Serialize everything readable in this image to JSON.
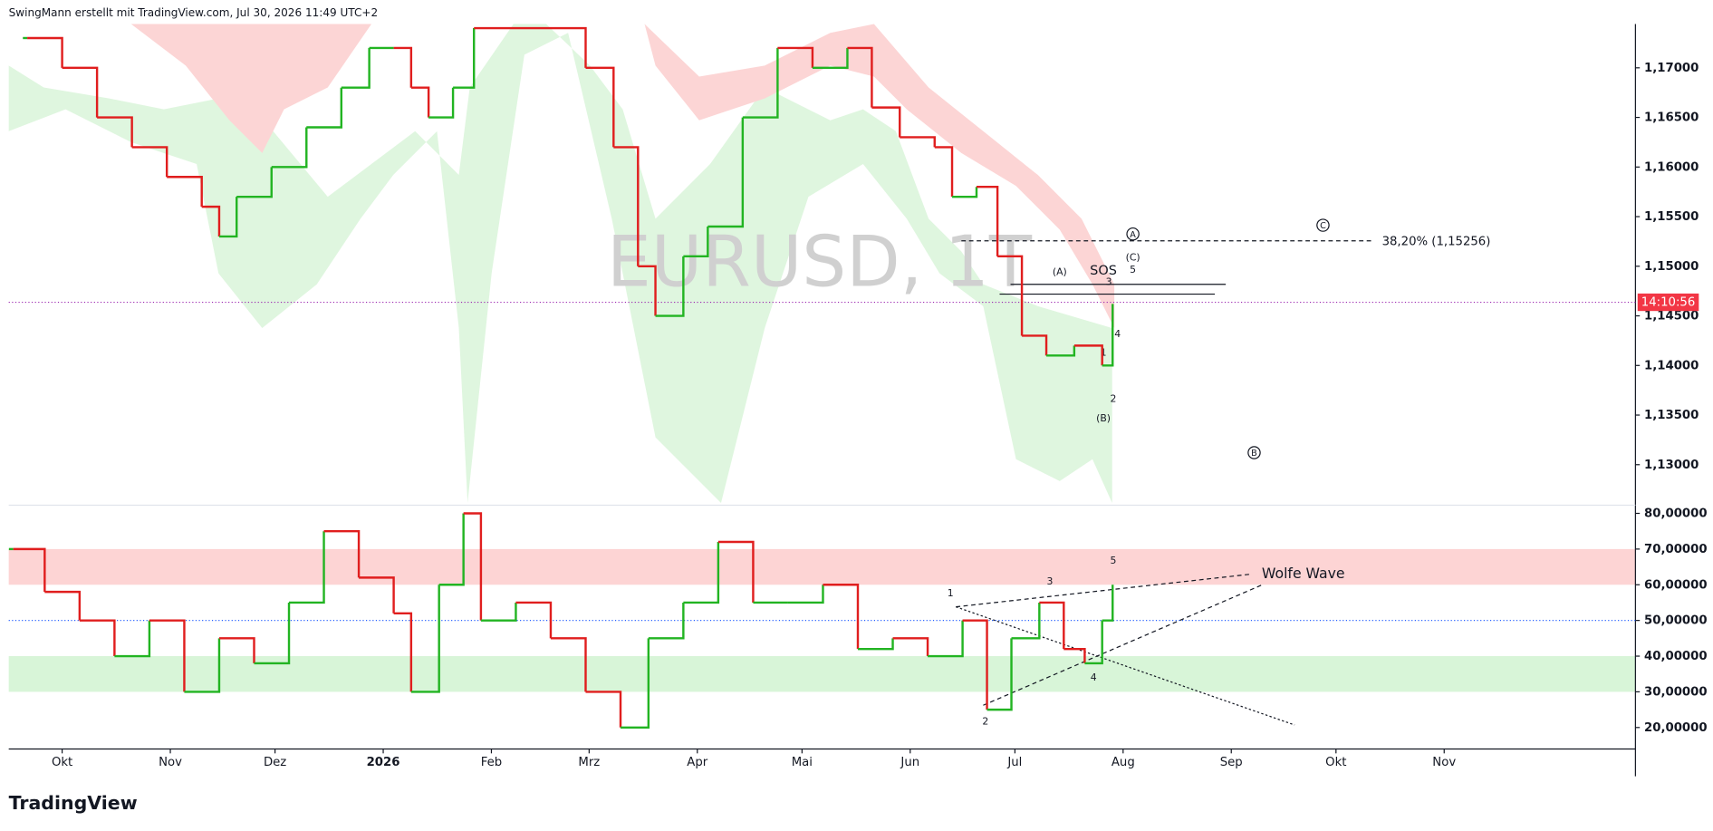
{
  "header": "SwingMann erstellt mit TradingView.com, Jul 30, 2026 11:49 UTC+2",
  "watermark": "EURUSD, 1T",
  "logo": "TradingView",
  "annotations": {
    "fib": "38,20% (1,15256)",
    "sos": "SOS",
    "wolfe": "Wolfe Wave",
    "A": "(A)",
    "B": "(B)",
    "C": "(C)",
    "cA": "A",
    "cB": "B",
    "cC": "C",
    "p3": "3",
    "p4": "4",
    "p5": "5",
    "p2": "2",
    "p1": "1",
    "o1": "1",
    "o2": "2",
    "o3": "3",
    "o4": "4",
    "o5": "5"
  },
  "chart_data": [
    {
      "type": "line",
      "title": "EURUSD",
      "xlim": [
        -15.3,
        450.8
      ],
      "xticks": [
        {
          "value": 0,
          "label": "Okt"
        },
        {
          "value": 31,
          "label": "Nov"
        },
        {
          "value": 61,
          "label": "Dez"
        },
        {
          "value": 92,
          "label": "2026"
        },
        {
          "value": 123,
          "label": "Feb"
        },
        {
          "value": 151,
          "label": "Mrz"
        },
        {
          "value": 182,
          "label": "Apr"
        },
        {
          "value": 212,
          "label": "Mai"
        },
        {
          "value": 243,
          "label": "Jun"
        },
        {
          "value": 273,
          "label": "Jul"
        },
        {
          "value": 304,
          "label": "Aug"
        },
        {
          "value": 335,
          "label": "Sep"
        },
        {
          "value": 365,
          "label": "Okt"
        },
        {
          "value": 396,
          "label": "Nov"
        }
      ],
      "ylim": [
        1.12592,
        1.17441
      ],
      "yticks": [
        {
          "value": 1.17,
          "label": "1,17000"
        },
        {
          "value": 1.165,
          "label": "1,16500"
        },
        {
          "value": 1.16,
          "label": "1,16000"
        },
        {
          "value": 1.155,
          "label": "1,15500"
        },
        {
          "value": 1.15,
          "label": "1,15000"
        },
        {
          "value": 1.145,
          "label": "1,14500"
        },
        {
          "value": 1.14,
          "label": "1,14000"
        },
        {
          "value": 1.135,
          "label": "1,13500"
        },
        {
          "value": 1.13,
          "label": "1,13000"
        }
      ],
      "x": [
        -10,
        0,
        10,
        20,
        30,
        40,
        45,
        50,
        60,
        70,
        80,
        88,
        95,
        100,
        105,
        112,
        118,
        150,
        158,
        165,
        170,
        178,
        185,
        195,
        205,
        215,
        225,
        232,
        240,
        250,
        255,
        262,
        268,
        275,
        282,
        290,
        298,
        301
      ],
      "series": [
        {
          "name": "EURUSD",
          "color_up": "#22b422",
          "color_down": "#e01e1e",
          "values": [
            1.173,
            1.17,
            1.165,
            1.162,
            1.159,
            1.156,
            1.153,
            1.157,
            1.16,
            1.164,
            1.168,
            1.172,
            1.172,
            1.168,
            1.165,
            1.168,
            1.174,
            1.17,
            1.162,
            1.15,
            1.145,
            1.151,
            1.154,
            1.165,
            1.172,
            1.17,
            1.172,
            1.166,
            1.163,
            1.162,
            1.157,
            1.158,
            1.151,
            1.143,
            1.141,
            1.142,
            1.14,
            1.1462
          ]
        }
      ],
      "current_price": 1.14637,
      "countdown": "14:10:56",
      "fib_level": 1.15256
    },
    {
      "type": "line",
      "title": "Oscillator",
      "ylim": [
        14.9,
        82.3
      ],
      "yticks": [
        {
          "value": 80,
          "label": "80,00000"
        },
        {
          "value": 70,
          "label": "70,00000"
        },
        {
          "value": 60,
          "label": "60,00000"
        },
        {
          "value": 50,
          "label": "50,00000"
        },
        {
          "value": 40,
          "label": "40,00000"
        },
        {
          "value": 30,
          "label": "30,00000"
        },
        {
          "value": 20,
          "label": "20,00000"
        }
      ],
      "bands": [
        {
          "range": [
            60,
            70
          ],
          "color": "#fdd4d4"
        },
        {
          "range": [
            30,
            40
          ],
          "color": "#d8f5d8"
        }
      ],
      "midline": 50,
      "x": [
        -14,
        -5,
        5,
        15,
        25,
        35,
        45,
        55,
        65,
        75,
        85,
        95,
        100,
        108,
        115,
        120,
        130,
        140,
        150,
        160,
        168,
        178,
        188,
        198,
        208,
        218,
        228,
        238,
        248,
        258,
        265,
        272,
        280,
        287,
        293,
        298,
        301
      ],
      "series": [
        {
          "name": "Oscillator",
          "color_up": "#22b422",
          "color_down": "#e01e1e",
          "values": [
            70,
            58,
            50,
            40,
            50,
            30,
            45,
            38,
            55,
            75,
            62,
            52,
            30,
            60,
            80,
            50,
            55,
            45,
            30,
            20,
            45,
            55,
            72,
            55,
            55,
            60,
            42,
            45,
            40,
            50,
            25,
            45,
            55,
            42,
            38,
            50,
            60
          ]
        }
      ]
    }
  ]
}
